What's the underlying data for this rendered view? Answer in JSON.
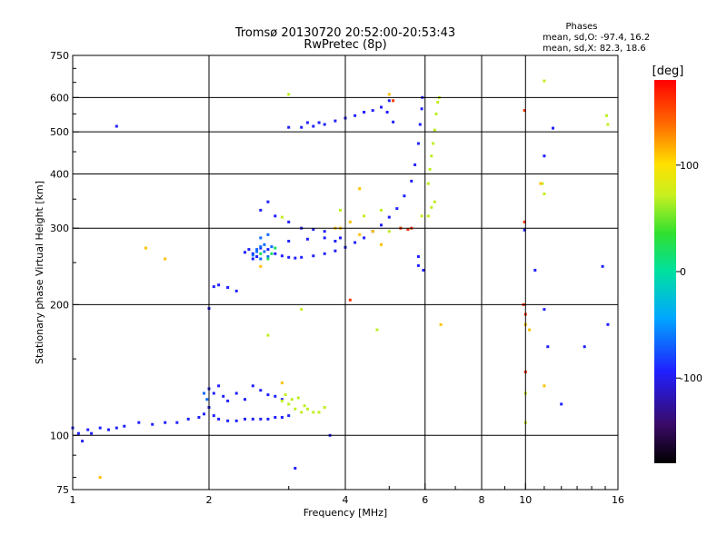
{
  "chart_data": {
    "type": "scatter",
    "title": "Tromsø 20130720 20:52:00-20:53:43",
    "subtitle": "RwPretec (8p)",
    "xlabel": "Frequency [MHz]",
    "ylabel": "Stationary phase Virtual Height [km]",
    "x_scale": "log",
    "y_scale": "log",
    "xlim": [
      1,
      16
    ],
    "ylim": [
      75,
      750
    ],
    "x_ticks": [
      1,
      2,
      4,
      6,
      8,
      10,
      16
    ],
    "x_tick_labels": [
      "1",
      "2",
      "4",
      "6",
      "8",
      "10",
      "16"
    ],
    "x_grid": [
      2,
      4,
      6,
      8,
      10
    ],
    "y_ticks": [
      75,
      100,
      200,
      300,
      400,
      500,
      600,
      750
    ],
    "y_tick_labels": [
      "75",
      "100",
      "200",
      "300",
      "400",
      "500",
      "600",
      "750"
    ],
    "y_grid": [
      100,
      200,
      300,
      400,
      500,
      600
    ],
    "grid": true,
    "stats": {
      "heading": "Phases",
      "line1": "mean, sd,O: -97.4, 16.2",
      "line2": "mean, sd,X:  82.3, 18.6"
    },
    "colorbar": {
      "label": "[deg]",
      "min": -180,
      "max": 180,
      "ticks": [
        100,
        0,
        -100
      ],
      "tick_labels": [
        "100",
        "0",
        "-100"
      ],
      "colormap": "rainbow"
    },
    "colors": {
      "o_mode": "#1e3cff",
      "x_mode": "#d8e81c",
      "grid": "#000000"
    },
    "series": [
      {
        "phase": -100,
        "points": [
          [
            1.0,
            104
          ],
          [
            1.03,
            101
          ],
          [
            1.05,
            97
          ],
          [
            1.08,
            103
          ],
          [
            1.1,
            101
          ],
          [
            1.15,
            104
          ],
          [
            1.2,
            103
          ],
          [
            1.25,
            104
          ],
          [
            1.3,
            105
          ],
          [
            1.4,
            107
          ],
          [
            1.5,
            106
          ],
          [
            1.6,
            107
          ],
          [
            1.7,
            107
          ],
          [
            1.8,
            109
          ],
          [
            1.9,
            110
          ],
          [
            1.95,
            112
          ],
          [
            2.0,
            116
          ],
          [
            2.05,
            111
          ],
          [
            2.1,
            109
          ],
          [
            2.2,
            108
          ],
          [
            2.3,
            108
          ],
          [
            2.4,
            109
          ],
          [
            2.5,
            109
          ],
          [
            2.6,
            109
          ],
          [
            2.7,
            109
          ],
          [
            2.8,
            110
          ],
          [
            2.9,
            110
          ],
          [
            3.0,
            111
          ],
          [
            2.0,
            128
          ],
          [
            2.05,
            125
          ],
          [
            2.1,
            130
          ],
          [
            2.15,
            123
          ],
          [
            2.2,
            120
          ],
          [
            2.3,
            125
          ],
          [
            2.4,
            121
          ],
          [
            2.5,
            130
          ],
          [
            2.6,
            127
          ],
          [
            2.7,
            124
          ],
          [
            2.8,
            123
          ],
          [
            2.9,
            121
          ],
          [
            2.0,
            196
          ],
          [
            2.05,
            220
          ],
          [
            2.1,
            222
          ],
          [
            2.2,
            219
          ],
          [
            2.3,
            215
          ],
          [
            2.4,
            264
          ],
          [
            2.45,
            268
          ],
          [
            2.5,
            262
          ],
          [
            2.55,
            258
          ],
          [
            2.6,
            270
          ],
          [
            2.7,
            268
          ],
          [
            2.8,
            262
          ],
          [
            2.9,
            259
          ],
          [
            3.0,
            257
          ],
          [
            3.1,
            256
          ],
          [
            3.2,
            257
          ],
          [
            3.4,
            259
          ],
          [
            3.6,
            262
          ],
          [
            3.8,
            266
          ],
          [
            4.0,
            271
          ],
          [
            4.2,
            278
          ],
          [
            4.4,
            285
          ],
          [
            4.6,
            295
          ],
          [
            4.8,
            305
          ],
          [
            5.0,
            318
          ],
          [
            5.2,
            333
          ],
          [
            5.4,
            356
          ],
          [
            5.6,
            385
          ],
          [
            5.7,
            420
          ],
          [
            5.8,
            470
          ],
          [
            5.85,
            520
          ],
          [
            5.9,
            565
          ],
          [
            5.92,
            600
          ],
          [
            2.6,
            330
          ],
          [
            2.8,
            320
          ],
          [
            3.0,
            310
          ],
          [
            3.2,
            300
          ],
          [
            3.4,
            298
          ],
          [
            3.6,
            295
          ],
          [
            3.8,
            280
          ],
          [
            3.0,
            280
          ],
          [
            3.3,
            283
          ],
          [
            3.6,
            285
          ],
          [
            3.9,
            285
          ],
          [
            3.0,
            512
          ],
          [
            3.2,
            512
          ],
          [
            3.4,
            515
          ],
          [
            3.6,
            520
          ],
          [
            3.8,
            530
          ],
          [
            4.0,
            538
          ],
          [
            4.2,
            545
          ],
          [
            4.4,
            555
          ],
          [
            4.6,
            560
          ],
          [
            4.8,
            570
          ],
          [
            5.0,
            590
          ],
          [
            4.95,
            555
          ],
          [
            5.1,
            527
          ],
          [
            2.5,
            255
          ],
          [
            2.7,
            345
          ],
          [
            3.3,
            525
          ],
          [
            3.5,
            525
          ],
          [
            5.8,
            258
          ],
          [
            5.8,
            246
          ],
          [
            5.95,
            240
          ],
          [
            9.95,
            297
          ],
          [
            11.2,
            160
          ],
          [
            12.0,
            118
          ],
          [
            13.5,
            160
          ],
          [
            14.8,
            245
          ],
          [
            15.2,
            180
          ],
          [
            10.5,
            240
          ],
          [
            11.0,
            195
          ],
          [
            11.0,
            440
          ],
          [
            11.5,
            510
          ],
          [
            3.7,
            100
          ],
          [
            3.1,
            84
          ],
          [
            1.25,
            515
          ]
        ]
      },
      {
        "phase": -70,
        "points": [
          [
            2.6,
            255
          ],
          [
            2.65,
            265
          ],
          [
            2.7,
            258
          ],
          [
            2.75,
            272
          ],
          [
            2.6,
            285
          ],
          [
            2.55,
            268
          ],
          [
            2.65,
            275
          ],
          [
            2.7,
            290
          ],
          [
            2.5,
            260
          ],
          [
            2.55,
            265
          ],
          [
            2.6,
            272
          ],
          [
            1.95,
            125
          ],
          [
            1.98,
            121
          ]
        ]
      },
      {
        "phase": 20,
        "points": [
          [
            2.7,
            255
          ],
          [
            2.75,
            262
          ],
          [
            2.8,
            270
          ],
          [
            2.6,
            262
          ]
        ]
      },
      {
        "phase": 70,
        "points": [
          [
            2.9,
            120
          ],
          [
            2.95,
            124
          ],
          [
            3.0,
            118
          ],
          [
            3.05,
            121
          ],
          [
            3.1,
            115
          ],
          [
            3.15,
            122
          ],
          [
            3.2,
            113
          ],
          [
            3.25,
            117
          ],
          [
            3.3,
            115
          ],
          [
            3.4,
            113
          ],
          [
            3.5,
            113
          ],
          [
            3.6,
            116
          ],
          [
            6.1,
            380
          ],
          [
            6.15,
            410
          ],
          [
            6.2,
            440
          ],
          [
            6.25,
            470
          ],
          [
            6.3,
            505
          ],
          [
            6.35,
            550
          ],
          [
            6.4,
            585
          ],
          [
            6.45,
            600
          ],
          [
            6.1,
            320
          ],
          [
            6.2,
            335
          ],
          [
            6.3,
            345
          ],
          [
            5.9,
            320
          ],
          [
            5.0,
            295
          ],
          [
            5.3,
            300
          ],
          [
            3.9,
            330
          ],
          [
            4.4,
            320
          ],
          [
            4.8,
            330
          ],
          [
            2.9,
            318
          ],
          [
            10.9,
            380
          ],
          [
            11.0,
            360
          ],
          [
            15.1,
            545
          ],
          [
            15.2,
            520
          ],
          [
            4.7,
            175
          ],
          [
            11.0,
            655
          ],
          [
            3.0,
            610
          ],
          [
            2.7,
            170
          ],
          [
            3.2,
            195
          ],
          [
            10.0,
            107
          ],
          [
            10.0,
            125
          ]
        ]
      },
      {
        "phase": 110,
        "points": [
          [
            4.8,
            275
          ],
          [
            4.6,
            295
          ],
          [
            4.3,
            290
          ],
          [
            3.8,
            300
          ],
          [
            4.1,
            310
          ],
          [
            3.9,
            300
          ],
          [
            10.0,
            180
          ],
          [
            10.2,
            175
          ],
          [
            10.8,
            380
          ],
          [
            6.5,
            180
          ],
          [
            1.15,
            80
          ],
          [
            1.6,
            255
          ],
          [
            1.45,
            270
          ],
          [
            4.3,
            370
          ],
          [
            5.0,
            610
          ],
          [
            2.6,
            245
          ],
          [
            2.9,
            132
          ],
          [
            11.0,
            130
          ]
        ]
      },
      {
        "phase": 160,
        "points": [
          [
            5.3,
            300
          ],
          [
            5.5,
            298
          ],
          [
            5.6,
            300
          ],
          [
            9.95,
            310
          ],
          [
            9.95,
            560
          ],
          [
            9.9,
            200
          ],
          [
            10.0,
            140
          ],
          [
            10.0,
            190
          ],
          [
            4.1,
            205
          ],
          [
            5.1,
            590
          ]
        ]
      }
    ]
  }
}
